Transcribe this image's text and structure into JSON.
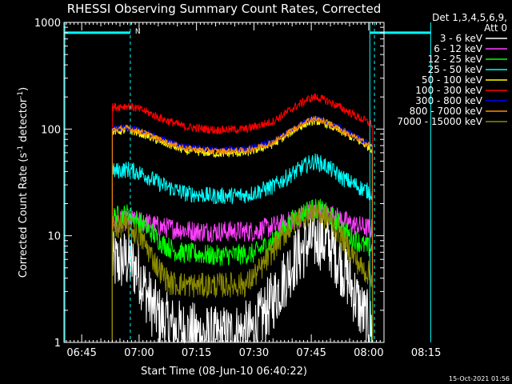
{
  "chart_data": {
    "type": "line",
    "title": "RHESSI Observing Summary Count Rates, Corrected",
    "xlabel": "Start Time (08-Jun-10 06:40:22)",
    "ylabel_main": "Corrected Count Rate (s",
    "ylabel_sup1": "-1",
    "ylabel_mid": " detector",
    "ylabel_sup2": "-1",
    "ylabel_end": ")",
    "yscale": "log",
    "ylim": [
      1,
      1000
    ],
    "xlim_min": [
      40.37,
      124.0
    ],
    "y_ticks": [
      "1",
      "10",
      "100",
      "1000"
    ],
    "x_ticks": [
      {
        "min": 45,
        "label": "06:45"
      },
      {
        "min": 60,
        "label": "07:00"
      },
      {
        "min": 75,
        "label": "07:15"
      },
      {
        "min": 90,
        "label": "07:30"
      },
      {
        "min": 105,
        "label": "07:45"
      },
      {
        "min": 120,
        "label": "08:00"
      },
      {
        "min": 135,
        "label": "08:15"
      }
    ],
    "legend_header": [
      "Det 1,3,4,5,6,9,",
      "Att 0"
    ],
    "timestamp": "15-Oct-2021 01:56",
    "annotation": "N",
    "night_markers": [
      57.7,
      121.5
    ],
    "vertical_markers": [
      40.6,
      120.3,
      136.2
    ],
    "series": [
      {
        "name": "3 - 6 keV",
        "color": "#ffffff",
        "keypoints": [
          [
            53.0,
            5.5
          ],
          [
            57.0,
            6.0
          ],
          [
            60.0,
            4.5
          ],
          [
            63.0,
            2.3
          ],
          [
            66.0,
            1.6
          ],
          [
            70.0,
            1.3
          ],
          [
            80.0,
            1.1
          ],
          [
            90.0,
            1.3
          ],
          [
            95.0,
            2.5
          ],
          [
            100.0,
            5.5
          ],
          [
            104.0,
            8.5
          ],
          [
            107.0,
            9.5
          ],
          [
            110.0,
            8.0
          ],
          [
            114.0,
            4.5
          ],
          [
            118.0,
            2.0
          ],
          [
            121.0,
            1.3
          ]
        ],
        "noise": 0.3
      },
      {
        "name": "6 - 12 keV",
        "color": "#ff40ff",
        "keypoints": [
          [
            53.0,
            13.0
          ],
          [
            57.0,
            14.0
          ],
          [
            61.0,
            13.5
          ],
          [
            66.0,
            12.0
          ],
          [
            75.0,
            11.0
          ],
          [
            90.0,
            11.0
          ],
          [
            98.0,
            13.0
          ],
          [
            103.0,
            15.5
          ],
          [
            106.0,
            17.0
          ],
          [
            110.0,
            16.0
          ],
          [
            115.0,
            13.0
          ],
          [
            121.0,
            11.5
          ]
        ],
        "noise": 0.1
      },
      {
        "name": "12 - 25 keV",
        "color": "#00ff00",
        "keypoints": [
          [
            53.0,
            15.0
          ],
          [
            57.0,
            16.0
          ],
          [
            61.0,
            13.0
          ],
          [
            66.0,
            8.5
          ],
          [
            70.0,
            7.0
          ],
          [
            80.0,
            6.5
          ],
          [
            90.0,
            6.8
          ],
          [
            95.0,
            9.0
          ],
          [
            100.0,
            14.0
          ],
          [
            104.0,
            17.5
          ],
          [
            107.0,
            18.0
          ],
          [
            111.0,
            14.5
          ],
          [
            115.0,
            10.0
          ],
          [
            119.0,
            8.0
          ],
          [
            121.0,
            7.5
          ]
        ],
        "noise": 0.1
      },
      {
        "name": "25 - 50 keV",
        "color": "#00ffff",
        "keypoints": [
          [
            53.0,
            40.0
          ],
          [
            57.0,
            42.0
          ],
          [
            61.0,
            38.0
          ],
          [
            66.0,
            30.0
          ],
          [
            72.0,
            25.0
          ],
          [
            80.0,
            23.5
          ],
          [
            88.0,
            24.0
          ],
          [
            95.0,
            29.0
          ],
          [
            100.0,
            38.0
          ],
          [
            104.0,
            47.0
          ],
          [
            106.0,
            50.0
          ],
          [
            109.0,
            45.0
          ],
          [
            113.0,
            35.0
          ],
          [
            118.0,
            28.0
          ],
          [
            121.0,
            25.0
          ]
        ],
        "noise": 0.08
      },
      {
        "name": "50 - 100 keV",
        "color": "#ffff00",
        "keypoints": [
          [
            53.0,
            95.0
          ],
          [
            57.0,
            98.0
          ],
          [
            61.0,
            90.0
          ],
          [
            66.0,
            75.0
          ],
          [
            72.0,
            63.0
          ],
          [
            80.0,
            59.0
          ],
          [
            88.0,
            60.0
          ],
          [
            95.0,
            72.0
          ],
          [
            100.0,
            95.0
          ],
          [
            104.0,
            115.0
          ],
          [
            106.0,
            120.0
          ],
          [
            109.0,
            112.0
          ],
          [
            114.0,
            90.0
          ],
          [
            118.0,
            75.0
          ],
          [
            121.0,
            65.0
          ]
        ],
        "noise": 0.04
      },
      {
        "name": "100 - 300 keV",
        "color": "#ff0000",
        "keypoints": [
          [
            53.0,
            160.0
          ],
          [
            57.0,
            165.0
          ],
          [
            61.0,
            150.0
          ],
          [
            66.0,
            125.0
          ],
          [
            72.0,
            105.0
          ],
          [
            80.0,
            98.0
          ],
          [
            88.0,
            100.0
          ],
          [
            95.0,
            118.0
          ],
          [
            100.0,
            155.0
          ],
          [
            104.0,
            190.0
          ],
          [
            106.0,
            200.0
          ],
          [
            109.0,
            185.0
          ],
          [
            114.0,
            150.0
          ],
          [
            118.0,
            125.0
          ],
          [
            121.0,
            110.0
          ]
        ],
        "noise": 0.04
      },
      {
        "name": "300 - 800 keV",
        "color": "#0000ff",
        "keypoints": [
          [
            53.0,
            100.0
          ],
          [
            57.0,
            104.0
          ],
          [
            61.0,
            95.0
          ],
          [
            66.0,
            80.0
          ],
          [
            72.0,
            68.0
          ],
          [
            80.0,
            64.0
          ],
          [
            88.0,
            65.0
          ],
          [
            95.0,
            77.0
          ],
          [
            100.0,
            100.0
          ],
          [
            104.0,
            122.0
          ],
          [
            106.0,
            127.0
          ],
          [
            109.0,
            118.0
          ],
          [
            114.0,
            95.0
          ],
          [
            118.0,
            80.0
          ],
          [
            121.0,
            70.0
          ]
        ],
        "noise": 0.03
      },
      {
        "name": "800 - 7000 keV",
        "color": "#ff8c00",
        "keypoints": [
          [
            53.0,
            98.0
          ],
          [
            57.0,
            102.0
          ],
          [
            61.0,
            93.0
          ],
          [
            66.0,
            78.0
          ],
          [
            72.0,
            66.0
          ],
          [
            80.0,
            62.0
          ],
          [
            88.0,
            63.0
          ],
          [
            95.0,
            75.0
          ],
          [
            100.0,
            98.0
          ],
          [
            104.0,
            120.0
          ],
          [
            106.0,
            125.0
          ],
          [
            109.0,
            116.0
          ],
          [
            114.0,
            93.0
          ],
          [
            118.0,
            78.0
          ],
          [
            121.0,
            68.0
          ]
        ],
        "noise": 0.03
      },
      {
        "name": "7000 - 15000 keV",
        "color": "#8b8b00",
        "keypoints": [
          [
            53.0,
            12.0
          ],
          [
            57.0,
            12.5
          ],
          [
            61.0,
            9.0
          ],
          [
            65.0,
            5.0
          ],
          [
            68.0,
            3.6
          ],
          [
            75.0,
            3.4
          ],
          [
            88.0,
            3.5
          ],
          [
            92.0,
            5.0
          ],
          [
            97.0,
            9.5
          ],
          [
            102.0,
            15.0
          ],
          [
            106.0,
            17.0
          ],
          [
            110.0,
            14.0
          ],
          [
            114.0,
            8.5
          ],
          [
            118.0,
            5.0
          ],
          [
            121.0,
            4.2
          ]
        ],
        "noise": 0.12
      }
    ]
  }
}
